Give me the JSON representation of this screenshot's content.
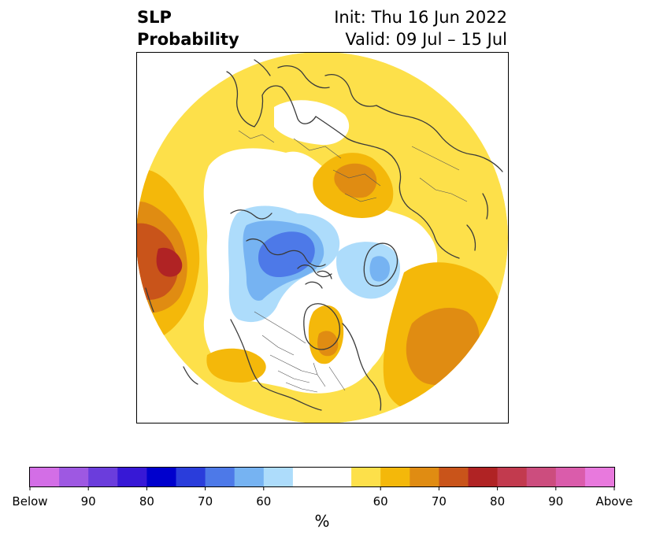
{
  "header": {
    "title_line1": "SLP",
    "title_line2": "Probability",
    "init_text": "Init: Thu 16 Jun 2022",
    "valid_text": "Valid: 09 Jul – 15 Jul"
  },
  "colorbar": {
    "unit": "%",
    "below_colors": [
      "#d36ee6",
      "#9e58e2",
      "#6b3ddc",
      "#3718d6",
      "#0000cd",
      "#2a3ddb",
      "#4d79e8",
      "#76b3f2",
      "#addcfb"
    ],
    "neutral_color": "#ffffff",
    "above_colors": [
      "#fde04a",
      "#f4b80a",
      "#e08c12",
      "#c9541a",
      "#b02324",
      "#c23a4e",
      "#cc4d7e",
      "#da5cab",
      "#e879dd"
    ],
    "tick_labels": [
      "Below",
      "90",
      "80",
      "70",
      "60",
      "60",
      "70",
      "80",
      "90",
      "Above"
    ]
  },
  "map": {
    "ocean_color": "#ffffff",
    "coastline_color": "#3a3a3a",
    "frame_color": "#000000"
  }
}
